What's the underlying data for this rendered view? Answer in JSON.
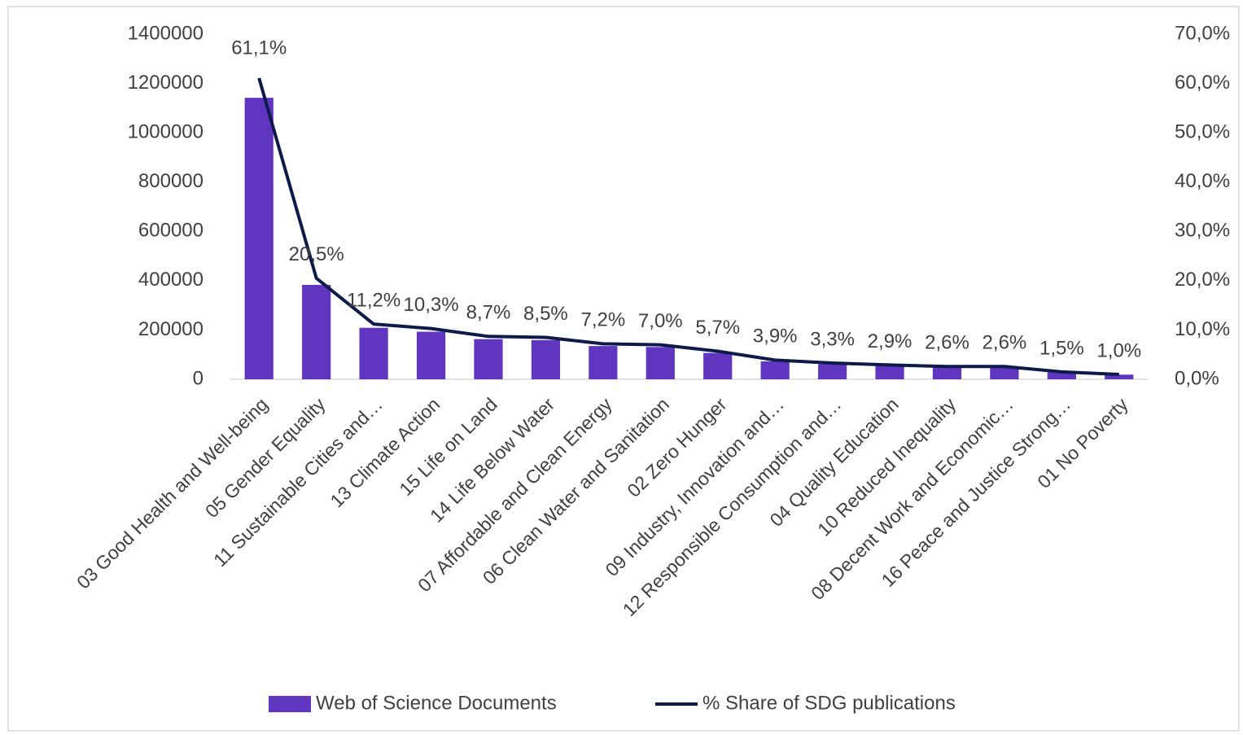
{
  "chart_data": {
    "type": "bar_line",
    "categories": [
      "03 Good Health and Well-being",
      "05 Gender Equality",
      "11 Sustainable Cities and…",
      "13 Climate Action",
      "15 Life on Land",
      "14 Life Below Water",
      "07 Affordable and Clean Energy",
      "06 Clean Water and Sanitation",
      "02 Zero Hunger",
      "09 Industry, Innovation and…",
      "12 Responsible Consumption and…",
      "04 Quality Education",
      "10 Reduced Inequality",
      "08 Decent Work and Economic…",
      "16 Peace and Justice Strong…",
      "01 No Poverty"
    ],
    "series": [
      {
        "name": "Web of Science Documents",
        "type": "bar",
        "color": "#6035c0",
        "values": [
          1142000,
          383000,
          209000,
          193000,
          163000,
          159000,
          135000,
          131000,
          107000,
          73000,
          62000,
          54000,
          49000,
          49000,
          28000,
          19000
        ]
      },
      {
        "name": "% Share of SDG publications",
        "type": "line",
        "axis": "y2",
        "color": "#0d1a4a",
        "values": [
          61.1,
          20.5,
          11.2,
          10.3,
          8.7,
          8.5,
          7.2,
          7.0,
          5.7,
          3.9,
          3.3,
          2.9,
          2.6,
          2.6,
          1.5,
          1.0
        ],
        "value_labels": [
          "61,1%",
          "20,5%",
          "11,2%",
          "10,3%",
          "8,7%",
          "8,5%",
          "7,2%",
          "7,0%",
          "5,7%",
          "3,9%",
          "3,3%",
          "2,9%",
          "2,6%",
          "2,6%",
          "1,5%",
          "1,0%"
        ]
      }
    ],
    "ylim": [
      0,
      1400000
    ],
    "yticks": [
      0,
      200000,
      400000,
      600000,
      800000,
      1000000,
      1200000,
      1400000
    ],
    "y2lim": [
      0,
      70
    ],
    "y2ticks": [
      {
        "value": 0,
        "label": "0,0%"
      },
      {
        "value": 10,
        "label": "10,0%"
      },
      {
        "value": 20,
        "label": "20,0%"
      },
      {
        "value": 30,
        "label": "30,0%"
      },
      {
        "value": 40,
        "label": "40,0%"
      },
      {
        "value": 50,
        "label": "50,0%"
      },
      {
        "value": 60,
        "label": "60,0%"
      },
      {
        "value": 70,
        "label": "70,0%"
      }
    ],
    "legend": "bottom"
  }
}
